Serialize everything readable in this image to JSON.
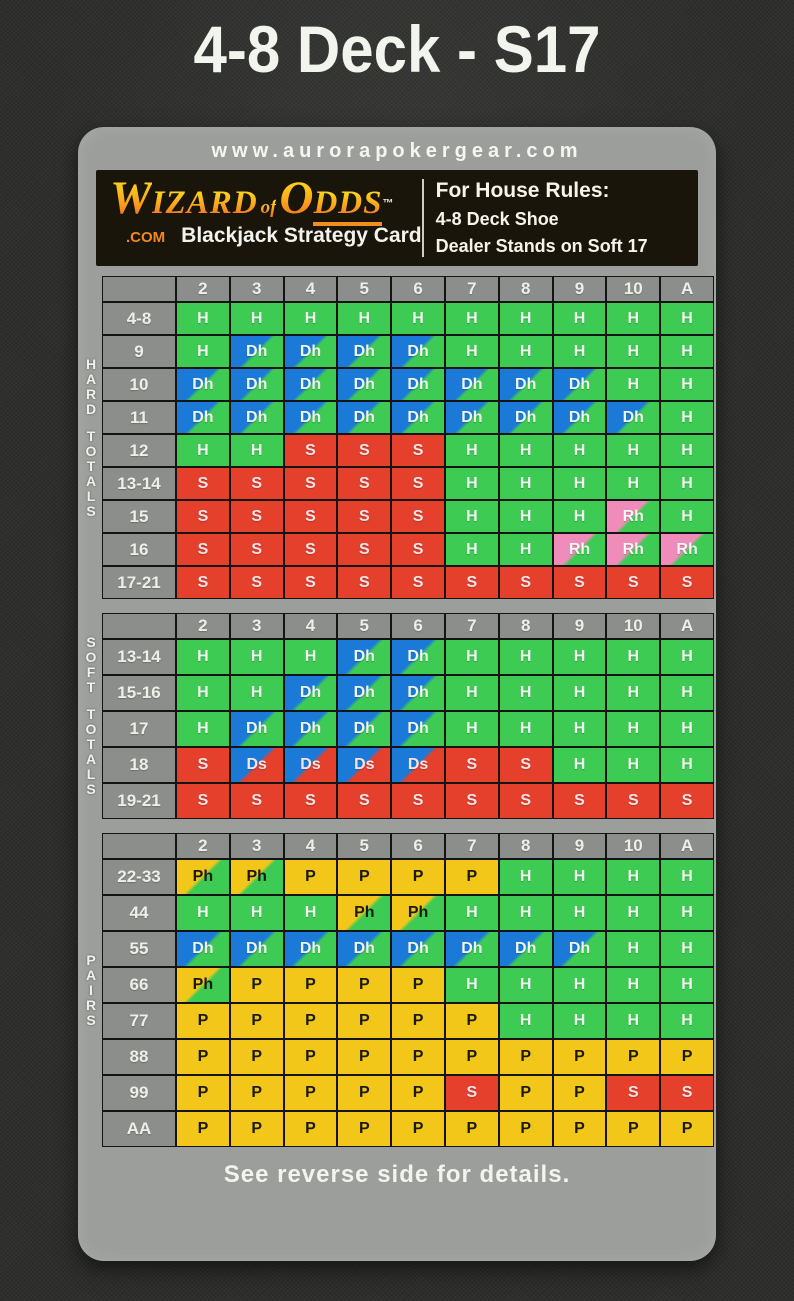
{
  "page_title": "4-8 Deck - S17",
  "card": {
    "website": "www.aurorapokergear.com",
    "banner": {
      "logo": {
        "w": "W",
        "izard": "IZARD",
        "of": "of",
        "o": "O",
        "dds": "DDS",
        "tm": "™",
        "com": ".COM",
        "sub": "Blackjack Strategy Card"
      },
      "rules_title": "For House Rules:",
      "rules_lines": [
        "4-8 Deck Shoe",
        "Dealer Stands on Soft 17"
      ]
    },
    "footer": "See reverse side for details."
  },
  "colors": {
    "hit_green": "#3ecb54",
    "stand_red": "#e5402b",
    "double_blue": "#1b7ad8",
    "split_yellow": "#f3c71a",
    "surrender_pink": "#ef8cba",
    "header_gray": "#8b8e8a",
    "card_gray": "#9b9e9a",
    "grid_line": "#141414"
  },
  "dealer_columns": [
    "2",
    "3",
    "4",
    "5",
    "6",
    "7",
    "8",
    "9",
    "10",
    "A"
  ],
  "tables": [
    {
      "label": "HARD TOTALS",
      "rows": [
        {
          "hand": "4-8",
          "cells": [
            "H",
            "H",
            "H",
            "H",
            "H",
            "H",
            "H",
            "H",
            "H",
            "H"
          ]
        },
        {
          "hand": "9",
          "cells": [
            "H",
            "Dh",
            "Dh",
            "Dh",
            "Dh",
            "H",
            "H",
            "H",
            "H",
            "H"
          ]
        },
        {
          "hand": "10",
          "cells": [
            "Dh",
            "Dh",
            "Dh",
            "Dh",
            "Dh",
            "Dh",
            "Dh",
            "Dh",
            "H",
            "H"
          ]
        },
        {
          "hand": "11",
          "cells": [
            "Dh",
            "Dh",
            "Dh",
            "Dh",
            "Dh",
            "Dh",
            "Dh",
            "Dh",
            "Dh",
            "H"
          ]
        },
        {
          "hand": "12",
          "cells": [
            "H",
            "H",
            "S",
            "S",
            "S",
            "H",
            "H",
            "H",
            "H",
            "H"
          ]
        },
        {
          "hand": "13-14",
          "cells": [
            "S",
            "S",
            "S",
            "S",
            "S",
            "H",
            "H",
            "H",
            "H",
            "H"
          ]
        },
        {
          "hand": "15",
          "cells": [
            "S",
            "S",
            "S",
            "S",
            "S",
            "H",
            "H",
            "H",
            "Rh",
            "H"
          ]
        },
        {
          "hand": "16",
          "cells": [
            "S",
            "S",
            "S",
            "S",
            "S",
            "H",
            "H",
            "Rh",
            "Rh",
            "Rh"
          ]
        },
        {
          "hand": "17-21",
          "cells": [
            "S",
            "S",
            "S",
            "S",
            "S",
            "S",
            "S",
            "S",
            "S",
            "S"
          ]
        }
      ]
    },
    {
      "label": "SOFT TOTALS",
      "rows": [
        {
          "hand": "13-14",
          "cells": [
            "H",
            "H",
            "H",
            "Dh",
            "Dh",
            "H",
            "H",
            "H",
            "H",
            "H"
          ]
        },
        {
          "hand": "15-16",
          "cells": [
            "H",
            "H",
            "Dh",
            "Dh",
            "Dh",
            "H",
            "H",
            "H",
            "H",
            "H"
          ]
        },
        {
          "hand": "17",
          "cells": [
            "H",
            "Dh",
            "Dh",
            "Dh",
            "Dh",
            "H",
            "H",
            "H",
            "H",
            "H"
          ]
        },
        {
          "hand": "18",
          "cells": [
            "S",
            "Ds",
            "Ds",
            "Ds",
            "Ds",
            "S",
            "S",
            "H",
            "H",
            "H"
          ]
        },
        {
          "hand": "19-21",
          "cells": [
            "S",
            "S",
            "S",
            "S",
            "S",
            "S",
            "S",
            "S",
            "S",
            "S"
          ]
        }
      ]
    },
    {
      "label": "PAIRS",
      "rows": [
        {
          "hand": "22-33",
          "cells": [
            "Ph",
            "Ph",
            "P",
            "P",
            "P",
            "P",
            "H",
            "H",
            "H",
            "H"
          ]
        },
        {
          "hand": "44",
          "cells": [
            "H",
            "H",
            "H",
            "Ph",
            "Ph",
            "H",
            "H",
            "H",
            "H",
            "H"
          ]
        },
        {
          "hand": "55",
          "cells": [
            "Dh",
            "Dh",
            "Dh",
            "Dh",
            "Dh",
            "Dh",
            "Dh",
            "Dh",
            "H",
            "H"
          ]
        },
        {
          "hand": "66",
          "cells": [
            "Ph",
            "P",
            "P",
            "P",
            "P",
            "H",
            "H",
            "H",
            "H",
            "H"
          ]
        },
        {
          "hand": "77",
          "cells": [
            "P",
            "P",
            "P",
            "P",
            "P",
            "P",
            "H",
            "H",
            "H",
            "H"
          ]
        },
        {
          "hand": "88",
          "cells": [
            "P",
            "P",
            "P",
            "P",
            "P",
            "P",
            "P",
            "P",
            "P",
            "P"
          ]
        },
        {
          "hand": "99",
          "cells": [
            "P",
            "P",
            "P",
            "P",
            "P",
            "S",
            "P",
            "P",
            "S",
            "S"
          ]
        },
        {
          "hand": "AA",
          "cells": [
            "P",
            "P",
            "P",
            "P",
            "P",
            "P",
            "P",
            "P",
            "P",
            "P"
          ]
        }
      ]
    }
  ]
}
